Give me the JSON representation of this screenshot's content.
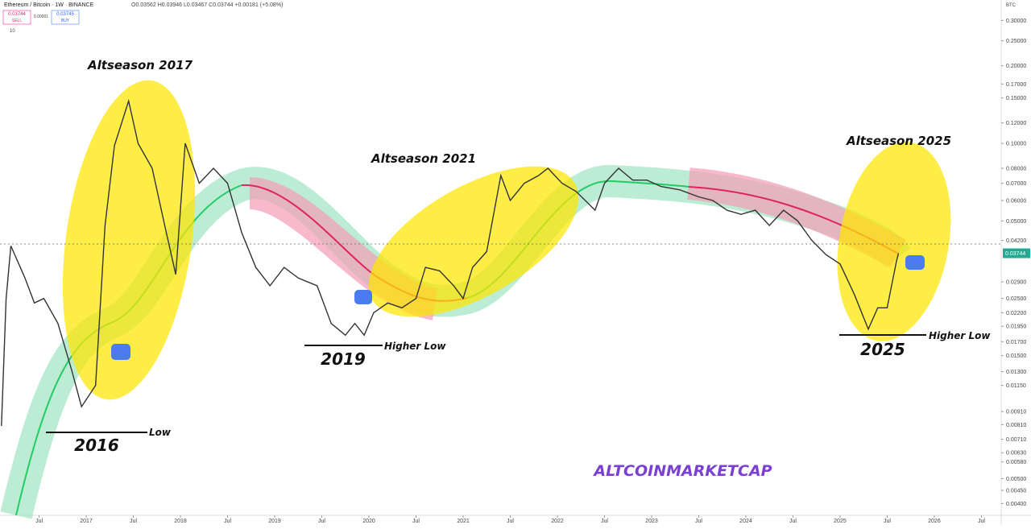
{
  "header": {
    "symbol": "Ethereum / Bitcoin · 1W · BINANCE",
    "ohlc": "O0.03562 H0.03946 L0.03467 C0.03744 +0.00181 (+5.08%)",
    "sell_price": "0.03744",
    "sell": "SELL",
    "spread": "0.00001",
    "buy_price": "0.03745",
    "buy": "BUY",
    "volume": "10",
    "currency": "BTC"
  },
  "annotations": {
    "altseason_2017": "Altseason 2017",
    "altseason_2021": "Altseason 2021",
    "altseason_2025": "Altseason 2025",
    "year_2016": "2016",
    "low": "Low",
    "year_2019": "2019",
    "higher_low_2019": "Higher Low",
    "year_2025": "2025",
    "higher_low_2025": "Higher Low",
    "watermark": "ALTCOINMARKETCAP"
  },
  "chart_data": {
    "type": "line",
    "color": "#333333",
    "log_scale": true,
    "price_tag": "0.03744",
    "x": [
      2016.1,
      2016.15,
      2016.2,
      2016.35,
      2016.45,
      2016.55,
      2016.7,
      2016.85,
      2016.95,
      2017.1,
      2017.2,
      2017.3,
      2017.45,
      2017.55,
      2017.7,
      2017.85,
      2017.95,
      2018.05,
      2018.2,
      2018.35,
      2018.5,
      2018.65,
      2018.8,
      2018.95,
      2019.1,
      2019.25,
      2019.45,
      2019.6,
      2019.75,
      2019.85,
      2019.95,
      2020.05,
      2020.2,
      2020.35,
      2020.5,
      2020.6,
      2020.75,
      2020.9,
      2021.0,
      2021.1,
      2021.25,
      2021.4,
      2021.5,
      2021.65,
      2021.8,
      2021.9,
      2022.05,
      2022.2,
      2022.4,
      2022.5,
      2022.65,
      2022.8,
      2022.95,
      2023.1,
      2023.3,
      2023.5,
      2023.65,
      2023.8,
      2023.95,
      2024.1,
      2024.25,
      2024.4,
      2024.55,
      2024.7,
      2024.85,
      2025.0,
      2025.15,
      2025.3,
      2025.4,
      2025.5,
      2025.6,
      2025.62
    ],
    "values": [
      0.008,
      0.025,
      0.04,
      0.03,
      0.024,
      0.025,
      0.02,
      0.013,
      0.0095,
      0.0115,
      0.048,
      0.098,
      0.146,
      0.1,
      0.08,
      0.045,
      0.031,
      0.1,
      0.07,
      0.08,
      0.07,
      0.045,
      0.033,
      0.028,
      0.033,
      0.03,
      0.028,
      0.02,
      0.018,
      0.02,
      0.018,
      0.022,
      0.024,
      0.023,
      0.025,
      0.033,
      0.032,
      0.028,
      0.025,
      0.033,
      0.038,
      0.075,
      0.06,
      0.07,
      0.075,
      0.08,
      0.07,
      0.065,
      0.055,
      0.07,
      0.08,
      0.072,
      0.072,
      0.068,
      0.066,
      0.062,
      0.06,
      0.055,
      0.053,
      0.055,
      0.048,
      0.055,
      0.05,
      0.042,
      0.037,
      0.034,
      0.026,
      0.019,
      0.023,
      0.023,
      0.035,
      0.03744
    ],
    "xlim": [
      2016.085,
      2026.71
    ],
    "xticks": [
      {
        "value": 2016.5,
        "label": "Jul"
      },
      2017,
      {
        "value": 2017.5,
        "label": "Jul"
      },
      2018,
      {
        "value": 2018.5,
        "label": "Jul"
      },
      2019,
      {
        "value": 2019.5,
        "label": "Jul"
      },
      2020,
      {
        "value": 2020.5,
        "label": "Jul"
      },
      2021,
      {
        "value": 2021.5,
        "label": "Jul"
      },
      2022,
      {
        "value": 2022.5,
        "label": "Jul"
      },
      2023,
      {
        "value": 2023.5,
        "label": "Jul"
      },
      2024,
      {
        "value": 2024.5,
        "label": "Jul"
      },
      2025,
      {
        "value": 2025.5,
        "label": "Jul"
      },
      2026,
      {
        "value": 2026.5,
        "label": "Jul"
      }
    ],
    "ylim": [
      0.0036,
      0.36
    ],
    "yticks": [
      {
        "value": 0.3,
        "label": "0.30000"
      },
      {
        "value": 0.25,
        "label": "0.25000"
      },
      {
        "value": 0.2,
        "label": "0.20000"
      },
      {
        "value": 0.17,
        "label": "0.17000"
      },
      {
        "value": 0.15,
        "label": "0.15000"
      },
      {
        "value": 0.12,
        "label": "0.12000"
      },
      {
        "value": 0.1,
        "label": "0.10000"
      },
      {
        "value": 0.08,
        "label": "0.08000"
      },
      {
        "value": 0.07,
        "label": "0.07000"
      },
      {
        "value": 0.06,
        "label": "0.06000"
      },
      {
        "value": 0.05,
        "label": "0.05000"
      },
      {
        "value": 0.042,
        "label": "0.04200"
      },
      {
        "value": 0.029,
        "label": "0.02900"
      },
      {
        "value": 0.025,
        "label": "0.02500"
      },
      {
        "value": 0.022,
        "label": "0.02200"
      },
      {
        "value": 0.0195,
        "label": "0.01950"
      },
      {
        "value": 0.017,
        "label": "0.01700"
      },
      {
        "value": 0.015,
        "label": "0.01500"
      },
      {
        "value": 0.013,
        "label": "0.01300"
      },
      {
        "value": 0.0115,
        "label": "0.01150"
      },
      {
        "value": 0.0091,
        "label": "0.00910"
      },
      {
        "value": 0.0081,
        "label": "0.00810"
      },
      {
        "value": 0.0071,
        "label": "0.00710"
      },
      {
        "value": 0.0063,
        "label": "0.00630"
      },
      {
        "value": 0.0058,
        "label": "0.00580"
      },
      {
        "value": 0.005,
        "label": "0.00500"
      },
      {
        "value": 0.0045,
        "label": "0.00450"
      },
      {
        "value": 0.004,
        "label": "0.00400"
      }
    ]
  }
}
